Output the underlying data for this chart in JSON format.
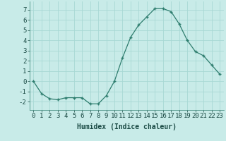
{
  "x": [
    0,
    1,
    2,
    3,
    4,
    5,
    6,
    7,
    8,
    9,
    10,
    11,
    12,
    13,
    14,
    15,
    16,
    17,
    18,
    19,
    20,
    21,
    22,
    23
  ],
  "y": [
    0,
    -1.2,
    -1.7,
    -1.8,
    -1.6,
    -1.6,
    -1.6,
    -2.2,
    -2.2,
    -1.4,
    0.0,
    2.3,
    4.3,
    5.5,
    6.3,
    7.1,
    7.1,
    6.8,
    5.6,
    4.0,
    2.9,
    2.5,
    1.6,
    0.7
  ],
  "line_color": "#2e7d6e",
  "marker": "+",
  "marker_color": "#2e7d6e",
  "bg_color": "#c8ebe8",
  "grid_color": "#a8d8d4",
  "xlabel": "Humidex (Indice chaleur)",
  "xlabel_fontsize": 7,
  "tick_fontsize": 6.5,
  "ylim": [
    -2.8,
    7.8
  ],
  "xlim": [
    -0.5,
    23.5
  ],
  "yticks": [
    -2,
    -1,
    0,
    1,
    2,
    3,
    4,
    5,
    6,
    7
  ],
  "xticks": [
    0,
    1,
    2,
    3,
    4,
    5,
    6,
    7,
    8,
    9,
    10,
    11,
    12,
    13,
    14,
    15,
    16,
    17,
    18,
    19,
    20,
    21,
    22,
    23
  ]
}
